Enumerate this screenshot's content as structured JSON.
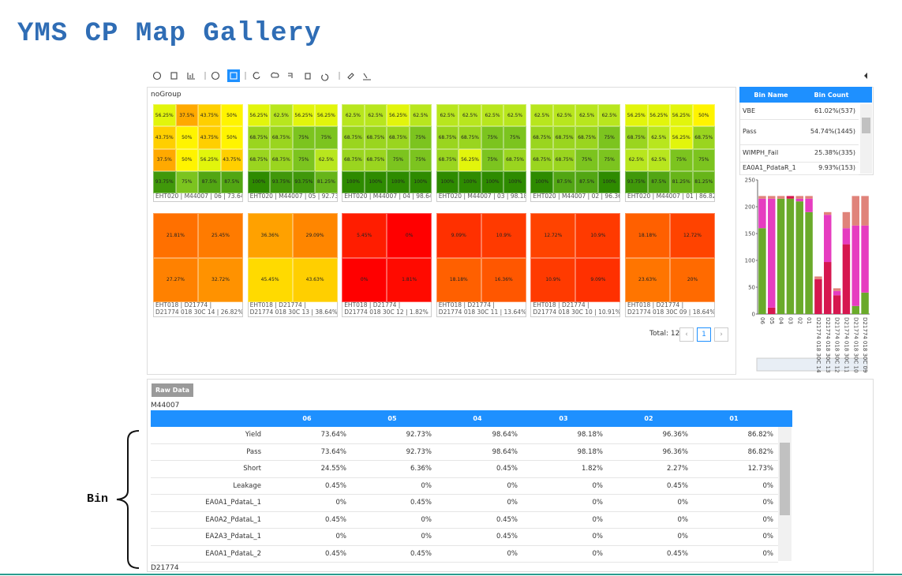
{
  "header": {
    "title": "YMS CP Map Gallery"
  },
  "gallery": {
    "group": "noGroup",
    "maps": [
      {
        "cells": [
          [
            "56.25%",
            "37.5%",
            "43.75%",
            "50%"
          ],
          [
            "43.75%",
            "50%",
            "43.75%",
            "50%"
          ],
          [
            "37.5%",
            "50%",
            "56.25%",
            "43.75%"
          ],
          [
            "93.75%",
            "75%",
            "87.5%",
            "87.5%"
          ]
        ],
        "caption": [
          "EHT020 | M44007 | 06 | 73.64%"
        ]
      },
      {
        "cells": [
          [
            "56.25%",
            "62.5%",
            "56.25%",
            "56.25%"
          ],
          [
            "68.75%",
            "68.75%",
            "75%",
            "75%"
          ],
          [
            "68.75%",
            "68.75%",
            "75%",
            "62.5%"
          ],
          [
            "100%",
            "93.75%",
            "93.75%",
            "81.25%"
          ]
        ],
        "caption": [
          "EHT020 | M44007 | 05 | 92.73%"
        ]
      },
      {
        "cells": [
          [
            "62.5%",
            "62.5%",
            "56.25%",
            "62.5%"
          ],
          [
            "68.75%",
            "68.75%",
            "68.75%",
            "75%"
          ],
          [
            "68.75%",
            "68.75%",
            "75%",
            "75%"
          ],
          [
            "100%",
            "100%",
            "100%",
            "100%"
          ]
        ],
        "caption": [
          "EHT020 | M44007 | 04 | 98.64%"
        ]
      },
      {
        "cells": [
          [
            "62.5%",
            "62.5%",
            "62.5%",
            "62.5%"
          ],
          [
            "68.75%",
            "68.75%",
            "75%",
            "75%"
          ],
          [
            "68.75%",
            "56.25%",
            "75%",
            "68.75%"
          ],
          [
            "100%",
            "100%",
            "100%",
            "100%"
          ]
        ],
        "caption": [
          "EHT020 | M44007 | 03 | 98.18%"
        ]
      },
      {
        "cells": [
          [
            "62.5%",
            "62.5%",
            "62.5%",
            "62.5%"
          ],
          [
            "68.75%",
            "68.75%",
            "68.75%",
            "75%"
          ],
          [
            "68.75%",
            "68.75%",
            "75%",
            "75%"
          ],
          [
            "100%",
            "87.5%",
            "87.5%",
            "100%"
          ]
        ],
        "caption": [
          "EHT020 | M44007 | 02 | 96.36%"
        ]
      },
      {
        "cells": [
          [
            "56.25%",
            "56.25%",
            "56.25%",
            "50%"
          ],
          [
            "68.75%",
            "62.5%",
            "56.25%",
            "68.75%"
          ],
          [
            "62.5%",
            "62.5%",
            "75%",
            "75%"
          ],
          [
            "93.75%",
            "87.5%",
            "81.25%",
            "81.25%"
          ]
        ],
        "caption": [
          "EHT020 | M44007 | 01 | 86.82%"
        ]
      },
      {
        "cells": [
          [
            "21.81%",
            "25.45%"
          ],
          [
            "27.27%",
            "32.72%"
          ]
        ],
        "caption": [
          "EHT018 | D21774 |",
          "D21774 018 30C 14 | 26.82%"
        ]
      },
      {
        "cells": [
          [
            "36.36%",
            "29.09%"
          ],
          [
            "45.45%",
            "43.63%"
          ]
        ],
        "caption": [
          "EHT018 | D21774 |",
          "D21774 018 30C 13 | 38.64%"
        ]
      },
      {
        "cells": [
          [
            "5.45%",
            "0%"
          ],
          [
            "0%",
            "1.81%"
          ]
        ],
        "caption": [
          "EHT018 | D21774 |",
          "D21774 018 30C 12 | 1.82%"
        ]
      },
      {
        "cells": [
          [
            "9.09%",
            "10.9%"
          ],
          [
            "18.18%",
            "16.36%"
          ]
        ],
        "caption": [
          "EHT018 | D21774 |",
          "D21774 018 30C 11 | 13.64%"
        ]
      },
      {
        "cells": [
          [
            "12.72%",
            "10.9%"
          ],
          [
            "10.9%",
            "9.09%"
          ]
        ],
        "caption": [
          "EHT018 | D21774 |",
          "D21774 018 30C 10 | 10.91%"
        ]
      },
      {
        "cells": [
          [
            "18.18%",
            "12.72%"
          ],
          [
            "23.63%",
            "20%"
          ]
        ],
        "caption": [
          "EHT018 | D21774 |",
          "D21774 018 30C 09 | 18.64%"
        ]
      }
    ],
    "total": "Total: 12",
    "page": "1"
  },
  "bin_table": {
    "headers": [
      "Bin Name",
      "Bin Count"
    ],
    "rows": [
      [
        "VBE",
        "61.02%(537)"
      ],
      [
        "Pass",
        "54.74%(1445)"
      ],
      [
        "WIMPH_Fail",
        "25.38%(335)"
      ],
      [
        "EA0A1_PdataR_1",
        "9.93%(153)"
      ]
    ]
  },
  "chart_data": {
    "type": "stacked-bar",
    "categories": [
      "06",
      "05",
      "04",
      "03",
      "02",
      "01",
      "D21774 018 30C 14",
      "D21774 018 30C 13",
      "D21774 018 30C 12",
      "D21774 018 30C 11",
      "D21774 018 30C 10",
      "D21774 018 30C 09"
    ],
    "series": [
      {
        "color": "#6aaa2a",
        "values": [
          160,
          0,
          215,
          215,
          210,
          190,
          0,
          0,
          0,
          0,
          15,
          40
        ]
      },
      {
        "color": "#d6174f",
        "values": [
          0,
          12,
          0,
          5,
          0,
          0,
          65,
          97,
          35,
          130,
          0,
          0
        ]
      },
      {
        "color": "#e63cc0",
        "values": [
          55,
          203,
          0,
          0,
          5,
          25,
          0,
          88,
          8,
          30,
          150,
          125
        ]
      },
      {
        "color": "#e0837a",
        "values": [
          5,
          5,
          5,
          0,
          5,
          5,
          5,
          5,
          5,
          30,
          55,
          55
        ]
      }
    ],
    "ylim": [
      0,
      250
    ],
    "yticks": [
      0,
      50,
      100,
      150,
      200,
      250
    ]
  },
  "raw_data": {
    "button": "Raw Data",
    "section": "M44007",
    "columns": [
      "06",
      "05",
      "04",
      "03",
      "02",
      "01"
    ],
    "rows": [
      [
        "Yield",
        "73.64%",
        "92.73%",
        "98.64%",
        "98.18%",
        "96.36%",
        "86.82%"
      ],
      [
        "Pass",
        "73.64%",
        "92.73%",
        "98.64%",
        "98.18%",
        "96.36%",
        "86.82%"
      ],
      [
        "Short",
        "24.55%",
        "6.36%",
        "0.45%",
        "1.82%",
        "2.27%",
        "12.73%"
      ],
      [
        "Leakage",
        "0.45%",
        "0%",
        "0%",
        "0%",
        "0.45%",
        "0%"
      ],
      [
        "EA0A1_PdataL_1",
        "0%",
        "0.45%",
        "0%",
        "0%",
        "0%",
        "0%"
      ],
      [
        "EA0A2_PdataL_1",
        "0.45%",
        "0%",
        "0.45%",
        "0%",
        "0%",
        "0%"
      ],
      [
        "EA2A3_PdataL_1",
        "0%",
        "0%",
        "0.45%",
        "0%",
        "0%",
        "0%"
      ],
      [
        "EA0A1_PdataL_2",
        "0.45%",
        "0.45%",
        "0%",
        "0%",
        "0.45%",
        "0%"
      ]
    ],
    "next_section": "D21774"
  },
  "annotation": {
    "label": "Bin"
  }
}
